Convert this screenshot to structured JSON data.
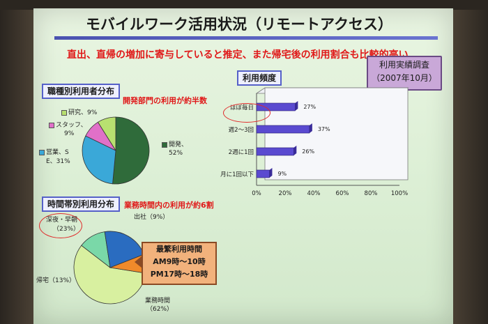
{
  "title": "モバイルワーク活用状況（リモートアクセス）",
  "subtitle": "直出、直帰の増加に寄与していると推定、また帰宅後の利用割合も比較的高い",
  "survey_badge": {
    "line1": "利用実績調査",
    "line2": "（2007年10月）"
  },
  "sections": {
    "occupation": {
      "label": "職種別利用者分布",
      "note": "開発部門の利用が約半数"
    },
    "frequency": {
      "label": "利用頻度"
    },
    "timeslot": {
      "label": "時間帯別利用分布",
      "note": "業務時間内の利用が約6割"
    }
  },
  "callout": {
    "line1": "最繁利用時間",
    "line2": "AM9時～10時",
    "line3": "PM17時～18時"
  },
  "colors": {
    "dev": "#2f6b3a",
    "staff": "#e070c8",
    "research": "#b8e070",
    "sales": "#3aa8d8",
    "business": "#d8f0a0",
    "commute_in": "#f08a2a",
    "late_night": "#2a6cc0",
    "home": "#7ad8a8",
    "bar": "#5a4ad0",
    "accent_red": "#e01818"
  },
  "chart_data": [
    {
      "type": "pie",
      "title": "職種別利用者分布",
      "slices": [
        {
          "label": "開発",
          "value_label": "52%",
          "value": 52
        },
        {
          "label": "営業、SE",
          "value_label": "31%",
          "value": 31
        },
        {
          "label": "スタッフ",
          "value_label": "9%",
          "value": 9
        },
        {
          "label": "研究",
          "value_label": "9%",
          "value": 9
        }
      ],
      "labels_text": {
        "dev_label": "開発、",
        "dev_pct": "52%",
        "sales_label": "営業、S",
        "sales_label2": "E、31%",
        "staff_label": "スタッフ、",
        "staff_pct": "9%",
        "research_label": "研究、9%"
      }
    },
    {
      "type": "bar",
      "title": "利用頻度",
      "orientation": "horizontal",
      "categories": [
        "ほぼ毎日",
        "週2～3回",
        "2週に1回",
        "月に1回以下"
      ],
      "values": [
        27,
        37,
        26,
        9
      ],
      "value_labels": [
        "27%",
        "37%",
        "26%",
        "9%"
      ],
      "xlim": [
        0,
        100
      ],
      "xticks": [
        "0%",
        "20%",
        "40%",
        "60%",
        "80%",
        "100%"
      ]
    },
    {
      "type": "pie",
      "title": "時間帯別利用分布",
      "slices": [
        {
          "label": "業務時間",
          "value_label": "62%",
          "value": 62
        },
        {
          "label": "帰宅",
          "value_label": "13%",
          "value": 13
        },
        {
          "label": "深夜・早朝",
          "value_label": "23%",
          "value": 23
        },
        {
          "label": "出社",
          "value_label": "9%",
          "value": 9
        }
      ],
      "labels_text": {
        "business_label": "業務時間",
        "business_pct": "（62%）",
        "home_label": "帰宅（13%）",
        "night_label": "深夜・早朝",
        "night_pct": "（23%）",
        "commute_label": "出社（9%）"
      }
    }
  ]
}
